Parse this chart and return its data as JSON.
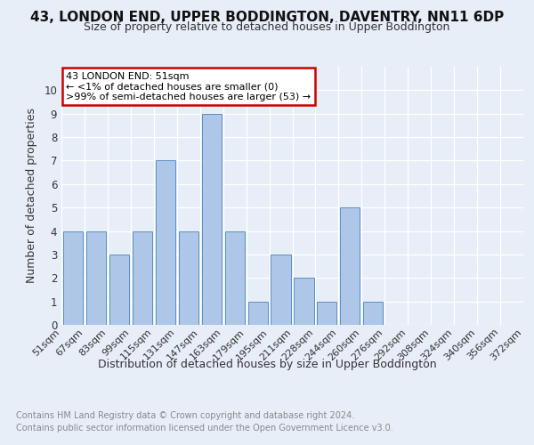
{
  "title1": "43, LONDON END, UPPER BODDINGTON, DAVENTRY, NN11 6DP",
  "title2": "Size of property relative to detached houses in Upper Boddington",
  "xlabel": "Distribution of detached houses by size in Upper Boddington",
  "ylabel": "Number of detached properties",
  "bin_labels": [
    "51sqm",
    "67sqm",
    "83sqm",
    "99sqm",
    "115sqm",
    "131sqm",
    "147sqm",
    "163sqm",
    "179sqm",
    "195sqm",
    "211sqm",
    "228sqm",
    "244sqm",
    "260sqm",
    "276sqm",
    "292sqm",
    "308sqm",
    "324sqm",
    "340sqm",
    "356sqm",
    "372sqm"
  ],
  "bar_values": [
    4,
    4,
    3,
    4,
    7,
    4,
    9,
    4,
    1,
    3,
    2,
    1,
    5,
    1,
    0,
    0,
    0,
    0,
    0,
    0
  ],
  "bar_color": "#aec6e8",
  "bar_edge_color": "#5a8fc2",
  "annotation_title": "43 LONDON END: 51sqm",
  "annotation_line1": "← <1% of detached houses are smaller (0)",
  "annotation_line2": ">99% of semi-detached houses are larger (53) →",
  "annotation_box_color": "#ffffff",
  "annotation_border_color": "#cc0000",
  "ylim": [
    0,
    11
  ],
  "yticks": [
    0,
    1,
    2,
    3,
    4,
    5,
    6,
    7,
    8,
    9,
    10
  ],
  "footnote1": "Contains HM Land Registry data © Crown copyright and database right 2024.",
  "footnote2": "Contains public sector information licensed under the Open Government Licence v3.0.",
  "bg_color": "#e8eef8",
  "plot_bg_color": "#e8eef8",
  "grid_color": "#ffffff",
  "title1_fontsize": 11,
  "title2_fontsize": 9,
  "ylabel_fontsize": 9,
  "xlabel_fontsize": 9,
  "tick_fontsize": 8,
  "footnote_fontsize": 7
}
